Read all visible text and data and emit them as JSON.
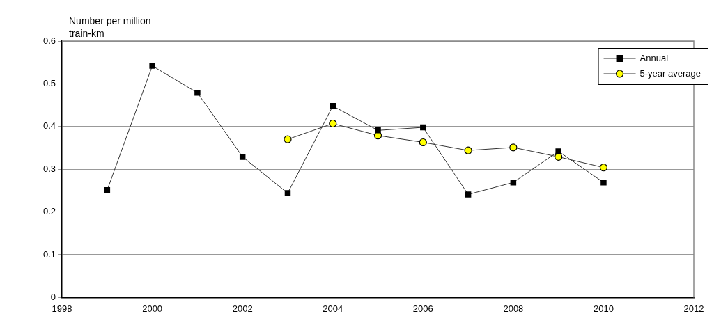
{
  "chart_data": {
    "type": "line",
    "ylabel": "Number per million\ntrain-km",
    "x": [
      1999,
      2000,
      2001,
      2002,
      2003,
      2004,
      2005,
      2006,
      2007,
      2008,
      2009,
      2010
    ],
    "series": [
      {
        "name": "Annual",
        "color": "#000000",
        "marker": "square",
        "values": [
          0.251,
          0.542,
          0.479,
          0.329,
          0.244,
          0.448,
          0.391,
          0.398,
          0.241,
          0.269,
          0.342,
          0.269
        ]
      },
      {
        "name": "5-year average",
        "color": "#ffff00",
        "marker": "circle",
        "values": [
          null,
          null,
          null,
          null,
          0.37,
          0.407,
          0.379,
          0.363,
          0.344,
          0.351,
          0.329,
          0.304
        ]
      }
    ],
    "xlim": [
      1998,
      2012
    ],
    "xticks": [
      1998,
      2000,
      2002,
      2004,
      2006,
      2008,
      2010,
      2012
    ],
    "ylim": [
      0,
      0.6
    ],
    "yticks": [
      0,
      0.1,
      0.2,
      0.3,
      0.4,
      0.5,
      0.6
    ],
    "grid": "y",
    "legend": "top right",
    "line_style": "solid"
  }
}
